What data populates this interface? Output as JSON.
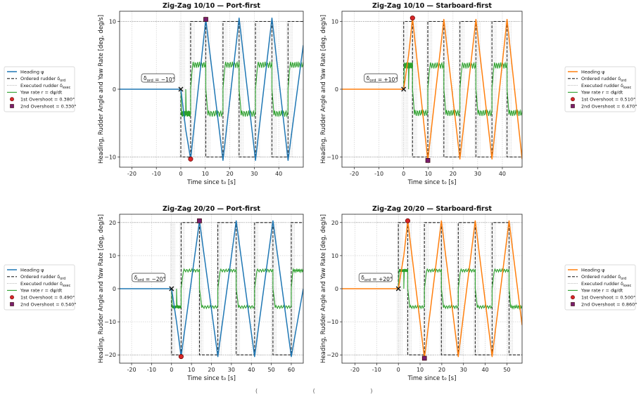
{
  "chart_data": [
    {
      "type": "line",
      "title": "Zig-Zag 10/10 — Port-first",
      "xlabel": "Time since t₀ [s]",
      "ylabel": "Heading, Rudder Angle and Yaw Rate [deg, deg/s]",
      "xlim": [
        -25,
        50
      ],
      "ylim": [
        -11.5,
        11.5
      ],
      "xticks": [
        -20,
        -10,
        0,
        10,
        20,
        30,
        40
      ],
      "xtick_labels": [
        "-20",
        "-10",
        "0",
        "10",
        "20",
        "30",
        "40"
      ],
      "yticks": [
        -10,
        0,
        10
      ],
      "ytick_labels": [
        "−10",
        "0",
        "10"
      ],
      "amp": 10,
      "heading_color": "#1f77b4",
      "annotation": "δ_ord = −10°",
      "heading": {
        "x": [
          -25,
          0,
          2,
          4,
          10.2,
          17.2,
          23.8,
          30.5,
          37.2,
          43.8,
          50
        ],
        "y": [
          0,
          0,
          -6,
          -10.3,
          10.3,
          -10.5,
          10.5,
          -10.5,
          10.5,
          -10.5,
          6.5
        ]
      },
      "ordered_rudder": {
        "x": [
          -25,
          0,
          0,
          4,
          4,
          10.2,
          10.2,
          17.2,
          17.2,
          23.8,
          23.8,
          30.5,
          30.5,
          37.2,
          37.2,
          43.8,
          43.8,
          50
        ],
        "y": [
          0,
          0,
          -10,
          -10,
          10,
          10,
          -10,
          -10,
          10,
          10,
          -10,
          -10,
          10,
          10,
          -10,
          -10,
          10,
          10
        ]
      },
      "yaw_rate_level": 3.6,
      "overshoot1": {
        "x": 1.6,
        "y": -10.3
      },
      "overshoot2": {
        "x": 4.5,
        "y": 10.3
      },
      "legend": [
        "Heading ψ",
        "Ordered rudder δ_ord",
        "Executed rudder δ_exec",
        "Yaw rate r = dψ/dt",
        "1st Overshoot = 0.380°",
        "2nd Overshoot = 0.330°"
      ]
    },
    {
      "type": "line",
      "title": "Zig-Zag 10/10 — Starboard-first",
      "xlabel": "Time since t₀ [s]",
      "ylabel": "Heading, Rudder Angle and Yaw Rate [deg, deg/s]",
      "xlim": [
        -25,
        48
      ],
      "ylim": [
        -11.5,
        11.5
      ],
      "xticks": [
        -20,
        -10,
        0,
        10,
        20,
        30,
        40
      ],
      "xtick_labels": [
        "-20",
        "-10",
        "0",
        "10",
        "20",
        "30",
        "40"
      ],
      "yticks": [
        -10,
        0,
        10
      ],
      "ytick_labels": [
        "−10",
        "0",
        "10"
      ],
      "amp": 10,
      "heading_color": "#ff7f0e",
      "annotation": "δ_ord = +10°",
      "heading": {
        "x": [
          -25,
          0,
          2,
          3.6,
          9.8,
          16.3,
          22.8,
          29.3,
          35.8,
          41.9,
          48
        ],
        "y": [
          0,
          0,
          5,
          10.5,
          -10.5,
          10.3,
          -10.3,
          10.3,
          -10.3,
          10.3,
          -10.3
        ]
      },
      "ordered_rudder": {
        "x": [
          -25,
          0,
          0,
          3.6,
          3.6,
          9.8,
          9.8,
          16.3,
          16.3,
          22.8,
          22.8,
          29.3,
          29.3,
          35.8,
          35.8,
          41.9,
          41.9,
          48
        ],
        "y": [
          0,
          0,
          10,
          10,
          -10,
          -10,
          10,
          10,
          -10,
          -10,
          10,
          10,
          -10,
          -10,
          10,
          10,
          -10,
          -10
        ]
      },
      "yaw_rate_level": 3.5,
      "overshoot1": {
        "x": 2,
        "y": 10.5
      },
      "overshoot2": {
        "x": 4.5,
        "y": -10.5
      },
      "legend": [
        "Heading ψ",
        "Ordered rudder δ_ord",
        "Executed rudder δ_exec",
        "Yaw rate r = dψ/dt",
        "1st Overshoot = 0.510°",
        "2nd Overshoot = 0.470°"
      ]
    },
    {
      "type": "line",
      "title": "Zig-Zag 20/20 — Port-first",
      "xlabel": "Time since t₀ [s]",
      "ylabel": "Heading, Rudder Angle and Yaw Rate [deg, deg/s]",
      "xlim": [
        -26,
        66
      ],
      "ylim": [
        -22.5,
        22.5
      ],
      "xticks": [
        -20,
        -10,
        0,
        10,
        20,
        30,
        40,
        50,
        60
      ],
      "xtick_labels": [
        "-20",
        "-10",
        "0",
        "10",
        "20",
        "30",
        "40",
        "50",
        "60"
      ],
      "yticks": [
        -20,
        -10,
        0,
        10,
        20
      ],
      "ytick_labels": [
        "−20",
        "−10",
        "0",
        "10",
        "20"
      ],
      "amp": 20,
      "heading_color": "#1f77b4",
      "annotation": "δ_ord = −20°",
      "heading": {
        "x": [
          -26,
          0,
          2.5,
          4.8,
          14,
          23.2,
          32.4,
          41.6,
          50.8,
          60,
          66
        ],
        "y": [
          0,
          0,
          -10,
          -20.5,
          20.5,
          -20.5,
          20.5,
          -20.5,
          20.5,
          -20.5,
          0
        ]
      },
      "ordered_rudder": {
        "x": [
          -26,
          0,
          0,
          4.8,
          4.8,
          14,
          14,
          23.2,
          23.2,
          32.4,
          32.4,
          41.6,
          41.6,
          50.8,
          50.8,
          60,
          60,
          66
        ],
        "y": [
          0,
          0,
          -20,
          -20,
          20,
          20,
          -20,
          -20,
          20,
          20,
          -20,
          -20,
          20,
          20,
          -20,
          -20,
          20,
          20
        ]
      },
      "yaw_rate_level": 5.5,
      "overshoot1": {
        "x": 4.8,
        "y": -20.5
      },
      "overshoot2": {
        "x": 14,
        "y": 20.5
      },
      "legend": [
        "Heading ψ",
        "Ordered rudder δ_ord",
        "Executed rudder δ_exec",
        "Yaw rate r = dψ/dt",
        "1st Overshoot = 0.490°",
        "2nd Overshoot = 0.540°"
      ]
    },
    {
      "type": "line",
      "title": "Zig-Zag 20/20 — Starboard-first",
      "xlabel": "Time since t₀ [s]",
      "ylabel": "Heading, Rudder Angle and Yaw Rate [deg, deg/s]",
      "xlim": [
        -26,
        57
      ],
      "ylim": [
        -22.5,
        22.5
      ],
      "xticks": [
        -20,
        -10,
        0,
        10,
        20,
        30,
        40,
        50
      ],
      "xtick_labels": [
        "-20",
        "-10",
        "0",
        "10",
        "20",
        "30",
        "40",
        "50"
      ],
      "yticks": [
        -20,
        -10,
        0,
        10,
        20
      ],
      "ytick_labels": [
        "−20",
        "−10",
        "0",
        "10",
        "20"
      ],
      "amp": 20,
      "heading_color": "#ff7f0e",
      "annotation": "δ_ord = +20°",
      "heading": {
        "x": [
          -26,
          0,
          2.5,
          4.3,
          12,
          19.8,
          27.6,
          35.4,
          43.2,
          51,
          57
        ],
        "y": [
          0,
          0,
          10,
          20.5,
          -21,
          20.5,
          -20.5,
          20.5,
          -20.5,
          20.5,
          -11
        ]
      },
      "ordered_rudder": {
        "x": [
          -26,
          0,
          0,
          4.3,
          4.3,
          12,
          12,
          19.8,
          19.8,
          27.6,
          27.6,
          35.4,
          35.4,
          43.2,
          43.2,
          51,
          51,
          57
        ],
        "y": [
          0,
          0,
          20,
          20,
          -20,
          -20,
          20,
          20,
          -20,
          -20,
          20,
          20,
          -20,
          -20,
          20,
          20,
          -20,
          -20
        ]
      },
      "yaw_rate_level": 5.5,
      "overshoot1": {
        "x": 4.3,
        "y": 20.5
      },
      "overshoot2": {
        "x": 12,
        "y": -21
      },
      "legend": [
        "Heading ψ",
        "Ordered rudder δ_ord",
        "Executed rudder δ_exec",
        "Yaw rate r = dψ/dt",
        "1st Overshoot = 0.500°",
        "2nd Overshoot = 0.860°"
      ]
    }
  ],
  "bottom_note": "( ( )"
}
